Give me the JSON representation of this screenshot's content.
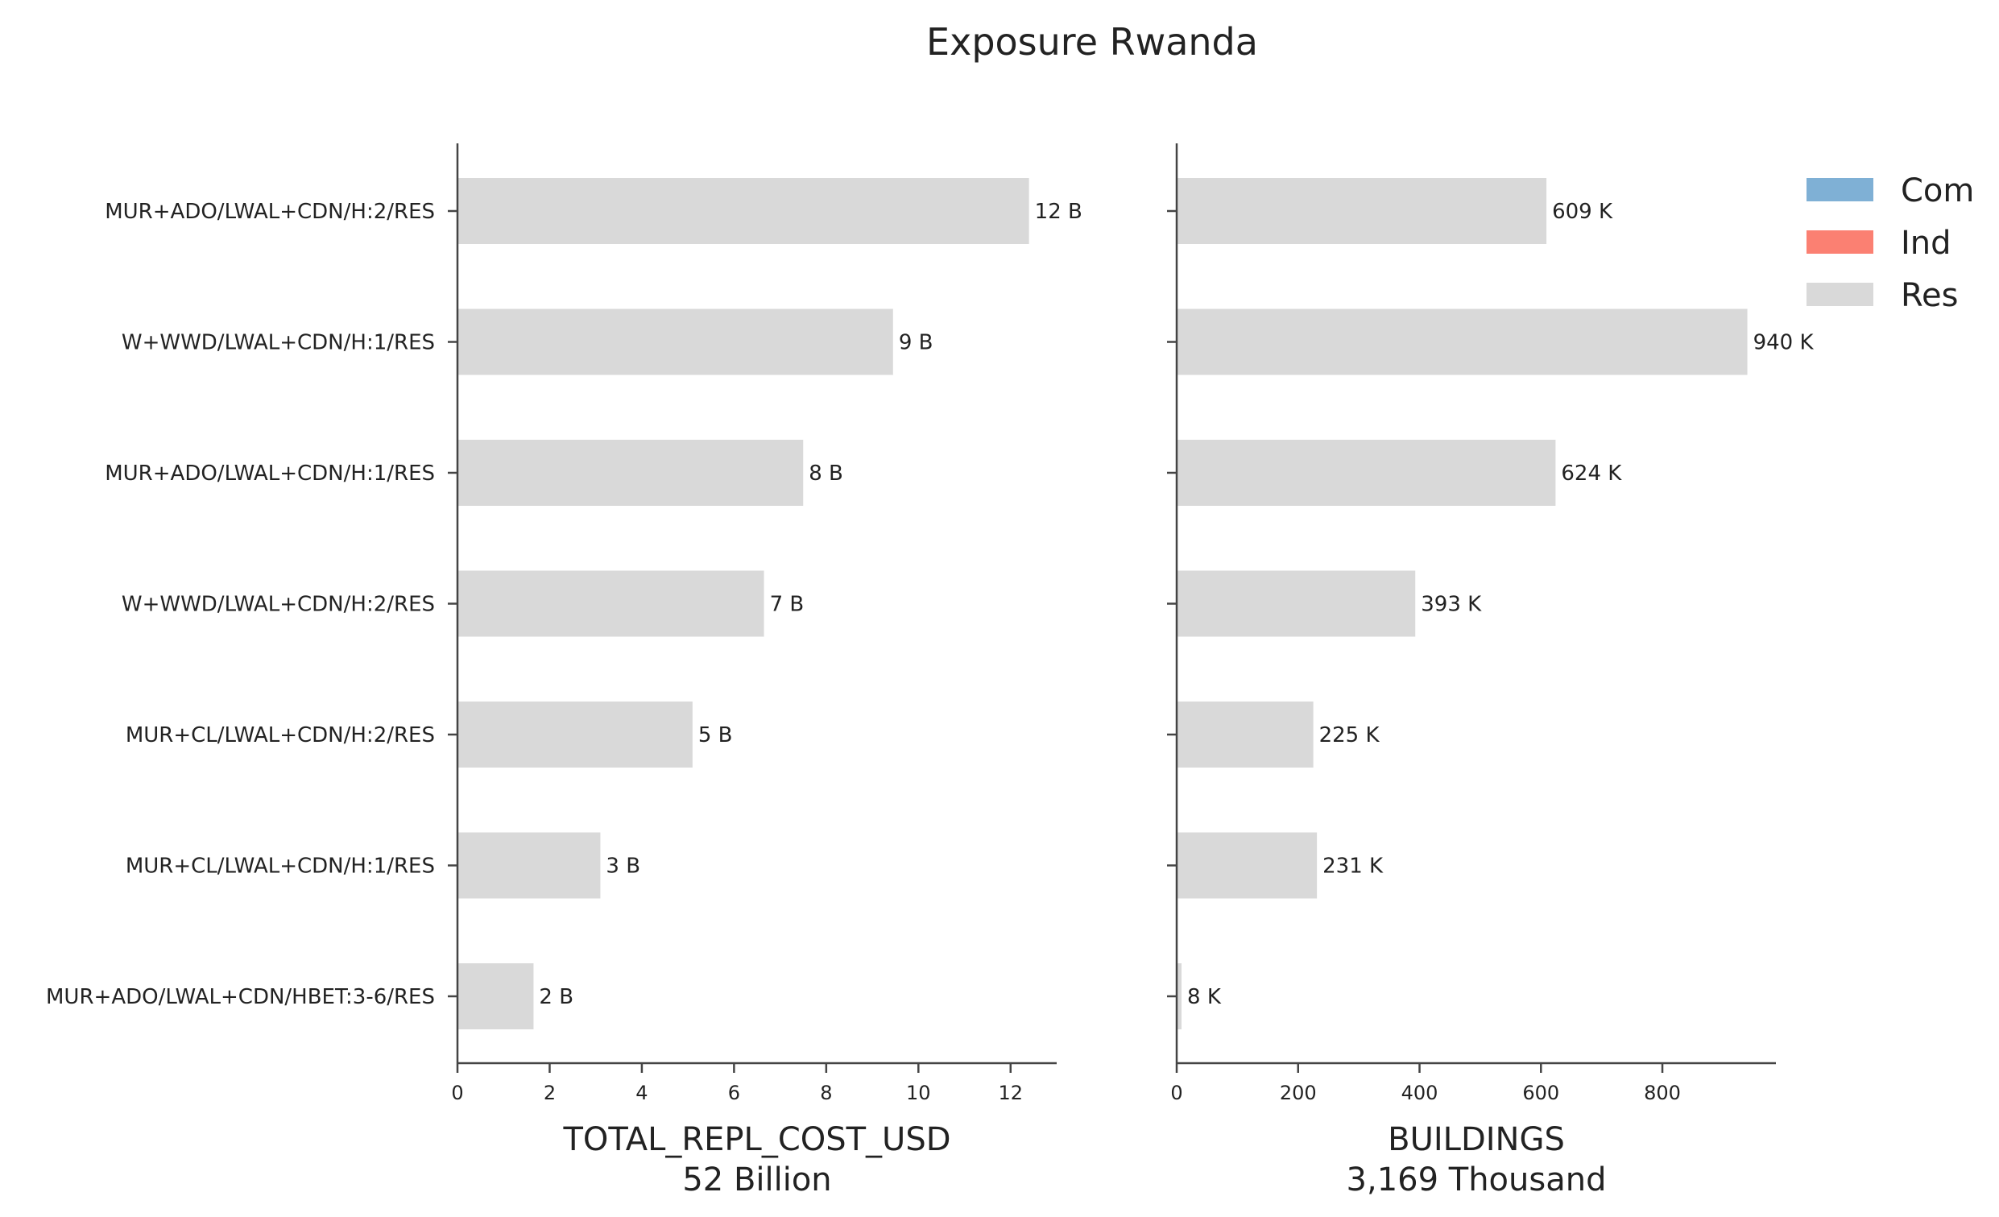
{
  "chart_data": {
    "title": "Exposure Rwanda",
    "type": "bar",
    "orientation": "horizontal",
    "categories": [
      "MUR+ADO/LWAL+CDN/H:2/RES",
      "W+WWD/LWAL+CDN/H:1/RES",
      "MUR+ADO/LWAL+CDN/H:1/RES",
      "W+WWD/LWAL+CDN/H:2/RES",
      "MUR+CL/LWAL+CDN/H:2/RES",
      "MUR+CL/LWAL+CDN/H:1/RES",
      "MUR+ADO/LWAL+CDN/HBET:3-6/RES"
    ],
    "legend": {
      "position": "top-right",
      "entries": [
        {
          "name": "Com",
          "color": "#7fb0d5"
        },
        {
          "name": "Ind",
          "color": "#fb8072"
        },
        {
          "name": "Res",
          "color": "#d9d9d9"
        }
      ]
    },
    "panels": [
      {
        "xlabel": "TOTAL_REPL_COST_USD",
        "xlabel_sub": "52 Billion",
        "xlim": [
          0,
          13
        ],
        "xticks": [
          0,
          2,
          4,
          6,
          8,
          10,
          12
        ],
        "series": [
          {
            "name": "Res",
            "color": "#d9d9d9",
            "values": [
              12.4,
              9.45,
              7.5,
              6.65,
              5.1,
              3.1,
              1.65
            ]
          }
        ],
        "data_labels": [
          "12 B",
          "9 B",
          "8 B",
          "7 B",
          "5 B",
          "3 B",
          "2 B"
        ]
      },
      {
        "xlabel": "BUILDINGS",
        "xlabel_sub": "3,169 Thousand",
        "xlim": [
          0,
          987
        ],
        "xticks": [
          0,
          200,
          400,
          600,
          800
        ],
        "series": [
          {
            "name": "Res",
            "color": "#d9d9d9",
            "values": [
              609,
              940,
              624,
              393,
              225,
              231,
              8
            ]
          }
        ],
        "data_labels": [
          "609 K",
          "940 K",
          "624 K",
          "393 K",
          "225 K",
          "231 K",
          "8 K"
        ]
      }
    ]
  }
}
